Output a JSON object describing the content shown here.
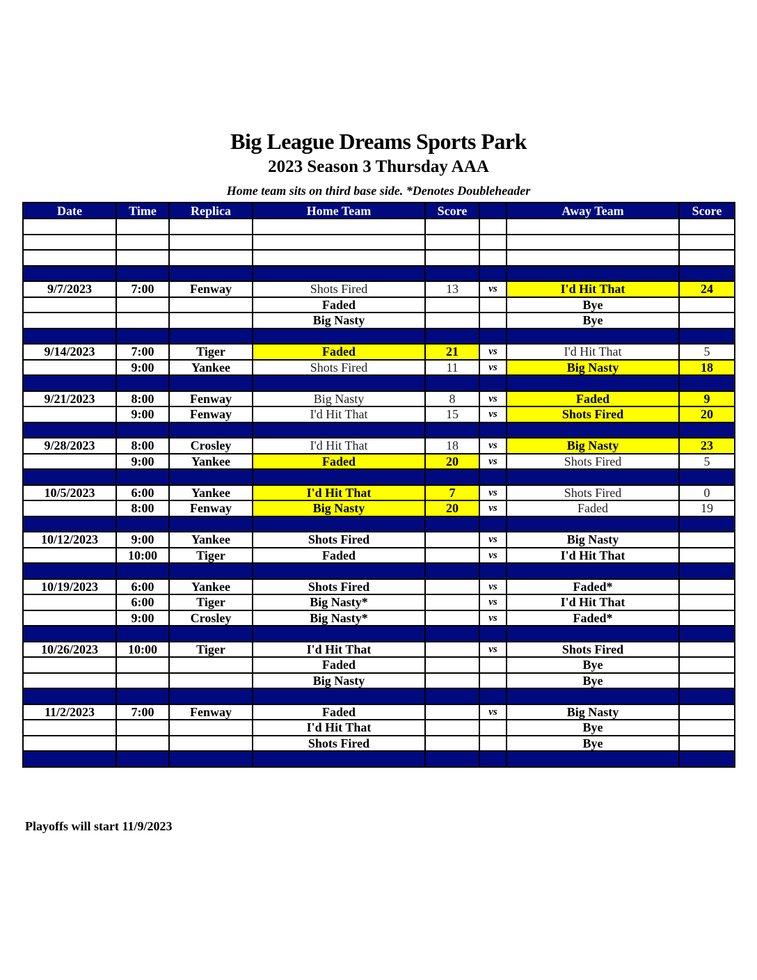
{
  "header": {
    "title": "Big League Dreams Sports Park",
    "subtitle": "2023 Season 3 Thursday AAA",
    "note": "Home team sits on third base side.  *Denotes Doubleheader"
  },
  "columns": [
    "Date",
    "Time",
    "Replica",
    "Home Team",
    "Score",
    "",
    "Away Team",
    "Score"
  ],
  "colors": {
    "header_bg": "#000a7e",
    "winner_bg": "#ffff00"
  },
  "rows": [
    {
      "type": "blank"
    },
    {
      "type": "blank"
    },
    {
      "type": "blank"
    },
    {
      "type": "sep"
    },
    {
      "type": "game",
      "date": "9/7/2023",
      "time": "7:00",
      "replica": "Fenway",
      "home": "Shots Fired",
      "home_score": "13",
      "vs": "vs",
      "away": "I'd Hit That",
      "away_score": "24",
      "winner": "away"
    },
    {
      "type": "game",
      "home": "Faded",
      "away": "Bye"
    },
    {
      "type": "game",
      "home": "Big Nasty",
      "away": "Bye"
    },
    {
      "type": "sep"
    },
    {
      "type": "game",
      "date": "9/14/2023",
      "time": "7:00",
      "replica": "Tiger",
      "home": "Faded",
      "home_score": "21",
      "vs": "vs",
      "away": "I'd Hit That",
      "away_score": "5",
      "winner": "home"
    },
    {
      "type": "game",
      "time": "9:00",
      "replica": "Yankee",
      "home": "Shots Fired",
      "home_score": "11",
      "vs": "vs",
      "away": "Big Nasty",
      "away_score": "18",
      "winner": "away"
    },
    {
      "type": "sep"
    },
    {
      "type": "game",
      "date": "9/21/2023",
      "time": "8:00",
      "replica": "Fenway",
      "home": "Big Nasty",
      "home_score": "8",
      "vs": "vs",
      "away": "Faded",
      "away_score": "9",
      "winner": "away"
    },
    {
      "type": "game",
      "time": "9:00",
      "replica": "Fenway",
      "home": "I'd Hit That",
      "home_score": "15",
      "vs": "vs",
      "away": "Shots Fired",
      "away_score": "20",
      "winner": "away"
    },
    {
      "type": "sep"
    },
    {
      "type": "game",
      "date": "9/28/2023",
      "time": "8:00",
      "replica": "Crosley",
      "home": "I'd Hit That",
      "home_score": "18",
      "vs": "vs",
      "away": "Big Nasty",
      "away_score": "23",
      "winner": "away"
    },
    {
      "type": "game",
      "time": "9:00",
      "replica": "Yankee",
      "home": "Faded",
      "home_score": "20",
      "vs": "vs",
      "away": "Shots Fired",
      "away_score": "5",
      "winner": "home"
    },
    {
      "type": "sep"
    },
    {
      "type": "game",
      "date": "10/5/2023",
      "time": "6:00",
      "replica": "Yankee",
      "home": "I'd Hit That",
      "home_score": "7",
      "vs": "vs",
      "away": "Shots Fired",
      "away_score": "0",
      "winner": "home"
    },
    {
      "type": "game",
      "time": "8:00",
      "replica": "Fenway",
      "home": "Big Nasty",
      "home_score": "20",
      "vs": "vs",
      "away": "Faded",
      "away_score": "19",
      "winner": "home"
    },
    {
      "type": "sep"
    },
    {
      "type": "game",
      "date": "10/12/2023",
      "time": "9:00",
      "replica": "Yankee",
      "home": "Shots Fired",
      "vs": "vs",
      "away": "Big Nasty"
    },
    {
      "type": "game",
      "time": "10:00",
      "replica": "Tiger",
      "home": "Faded",
      "vs": "vs",
      "away": "I'd Hit That"
    },
    {
      "type": "sep"
    },
    {
      "type": "game",
      "date": "10/19/2023",
      "time": "6:00",
      "replica": "Yankee",
      "home": "Shots Fired",
      "vs": "vs",
      "away": "Faded*"
    },
    {
      "type": "game",
      "time": "6:00",
      "replica": "Tiger",
      "home": "Big Nasty*",
      "vs": "vs",
      "away": "I'd Hit That"
    },
    {
      "type": "game",
      "time": "9:00",
      "replica": "Crosley",
      "home": "Big Nasty*",
      "vs": "vs",
      "away": "Faded*"
    },
    {
      "type": "sep"
    },
    {
      "type": "game",
      "date": "10/26/2023",
      "time": "10:00",
      "replica": "Tiger",
      "home": "I'd Hit That",
      "vs": "vs",
      "away": "Shots Fired"
    },
    {
      "type": "game",
      "home": "Faded",
      "away": "Bye"
    },
    {
      "type": "game",
      "home": "Big Nasty",
      "away": "Bye"
    },
    {
      "type": "sep"
    },
    {
      "type": "game",
      "date": "11/2/2023",
      "time": "7:00",
      "replica": "Fenway",
      "home": "Faded",
      "vs": "vs",
      "away": "Big Nasty"
    },
    {
      "type": "game",
      "home": "I'd Hit That",
      "away": "Bye"
    },
    {
      "type": "game",
      "home": "Shots Fired",
      "away": "Bye"
    },
    {
      "type": "sep"
    }
  ],
  "footer": "Playoffs will start 11/9/2023"
}
